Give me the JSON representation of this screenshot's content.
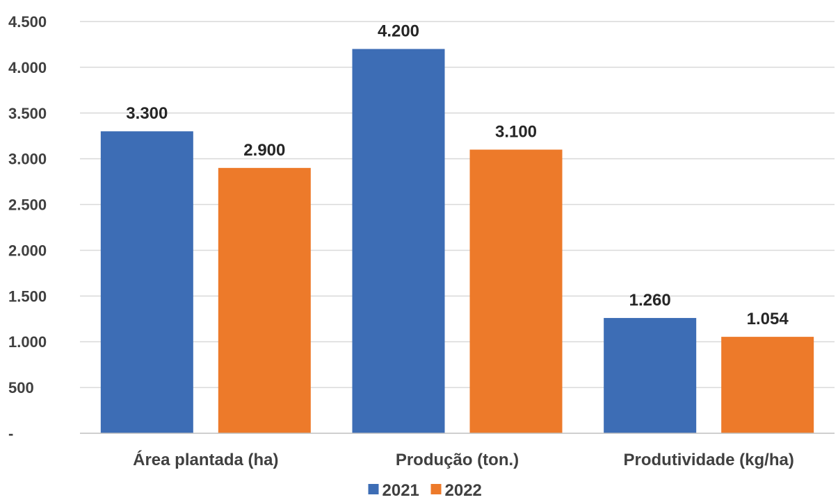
{
  "chart_data": {
    "type": "bar",
    "categories": [
      "Área plantada (ha)",
      "Produção (ton.)",
      "Produtividade (kg/ha)"
    ],
    "series": [
      {
        "name": "2021",
        "values": [
          3300,
          4200,
          1260
        ],
        "labels": [
          "3.300",
          "4.200",
          "1.260"
        ],
        "color": "#3d6db5"
      },
      {
        "name": "2022",
        "values": [
          2900,
          3100,
          1054
        ],
        "labels": [
          "2.900",
          "3.100",
          "1.054"
        ],
        "color": "#ed7a2a"
      }
    ],
    "yticks": [
      0,
      500,
      1000,
      1500,
      2000,
      2500,
      3000,
      3500,
      4000,
      4500
    ],
    "ytick_labels": [
      "-",
      "500",
      "1.000",
      "1.500",
      "2.000",
      "2.500",
      "3.000",
      "3.500",
      "4.000",
      "4.500"
    ],
    "ylim": [
      0,
      4500
    ],
    "grid": true,
    "legend_position": "bottom",
    "title": "",
    "xlabel": "",
    "ylabel": ""
  }
}
